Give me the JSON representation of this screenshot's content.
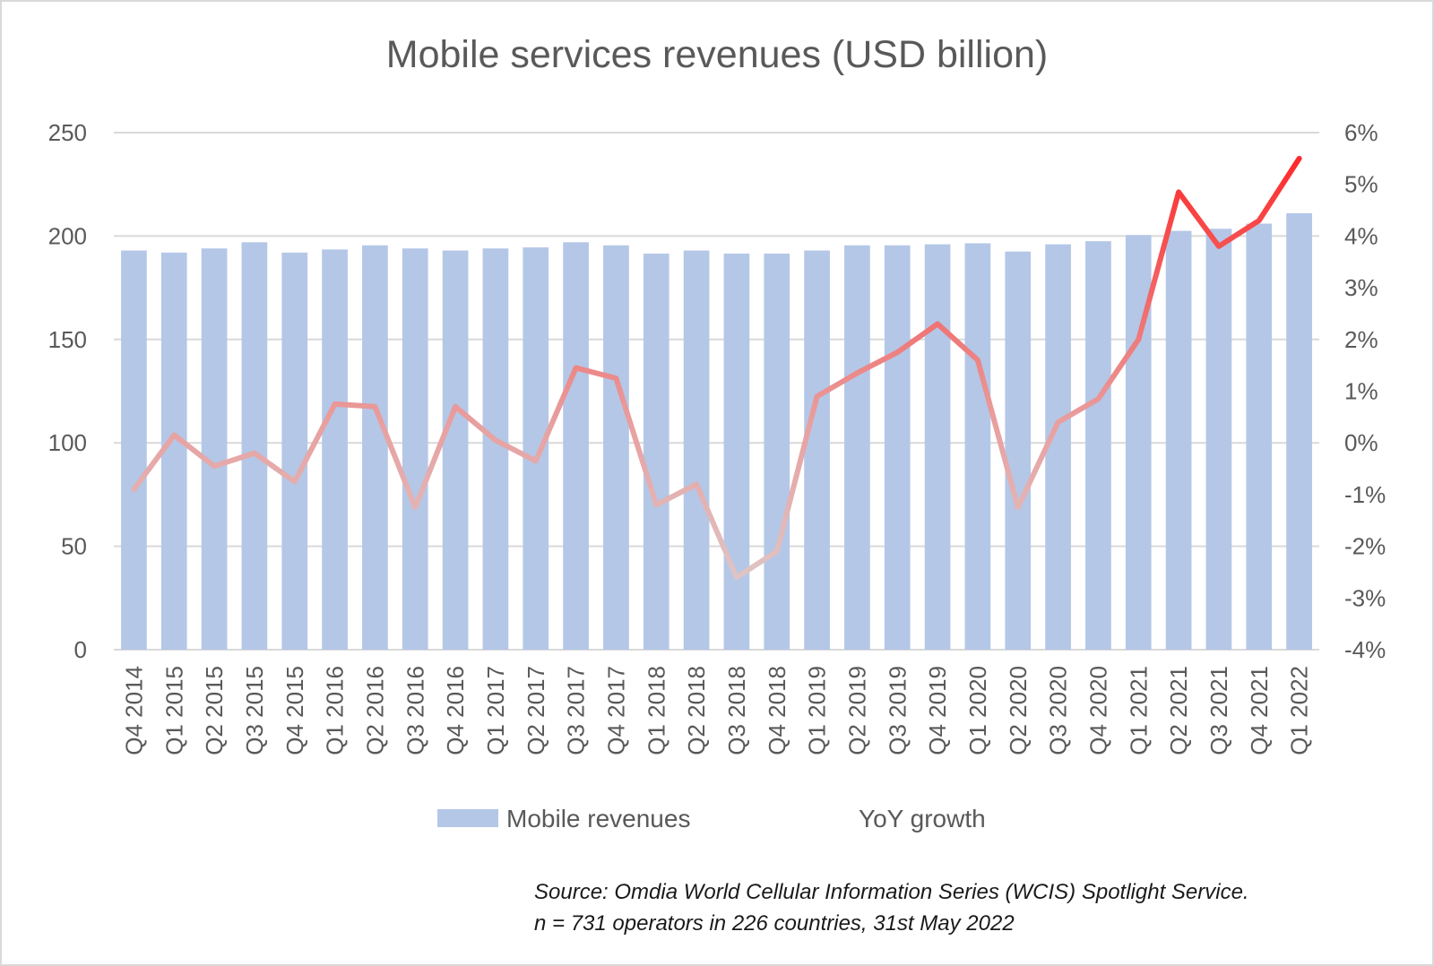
{
  "colors": {
    "bar": "#b4c7e7",
    "grid": "#d9d9d9",
    "axis_text": "#595959",
    "line_start": "#d9d9d9",
    "line_end": "#ff2020"
  },
  "chart_data": {
    "type": "bar",
    "title": "Mobile services revenues (USD billion)",
    "categories": [
      "Q4 2014",
      "Q1 2015",
      "Q2 2015",
      "Q3 2015",
      "Q4 2015",
      "Q1 2016",
      "Q2 2016",
      "Q3 2016",
      "Q4 2016",
      "Q1 2017",
      "Q2 2017",
      "Q3 2017",
      "Q4 2017",
      "Q1 2018",
      "Q2 2018",
      "Q3 2018",
      "Q4 2018",
      "Q1 2019",
      "Q2 2019",
      "Q3 2019",
      "Q4 2019",
      "Q1 2020",
      "Q2 2020",
      "Q3 2020",
      "Q4 2020",
      "Q1 2021",
      "Q2 2021",
      "Q3 2021",
      "Q4 2021",
      "Q1 2022"
    ],
    "series": [
      {
        "name": "Mobile revenues",
        "type": "bar",
        "axis": "left",
        "values": [
          193,
          192,
          194,
          197,
          192,
          193.5,
          195.5,
          194,
          193,
          194,
          194.5,
          197,
          195.5,
          191.5,
          193,
          191.5,
          191.5,
          193,
          195.5,
          195.5,
          196,
          196.5,
          192.5,
          196,
          197.5,
          200.5,
          202.5,
          203.5,
          206,
          211
        ]
      },
      {
        "name": "YoY growth",
        "type": "line",
        "axis": "right",
        "unit": "%",
        "values": [
          -0.9,
          0.15,
          -0.45,
          -0.2,
          -0.75,
          0.75,
          0.7,
          -1.25,
          0.7,
          0.05,
          -0.35,
          1.45,
          1.25,
          -1.2,
          -0.8,
          -2.6,
          -2.1,
          0.9,
          1.35,
          1.75,
          2.3,
          1.6,
          -1.25,
          0.4,
          0.85,
          2.0,
          4.85,
          3.8,
          4.3,
          5.5
        ]
      }
    ],
    "ylim": [
      0,
      250
    ],
    "yticks": [
      "0",
      "50",
      "100",
      "150",
      "200",
      "250"
    ],
    "y2lim": [
      -4,
      6
    ],
    "y2ticks": [
      "-4%",
      "-3%",
      "-2%",
      "-1%",
      "0%",
      "1%",
      "2%",
      "3%",
      "4%",
      "5%",
      "6%"
    ],
    "grid": true,
    "legend_position": "bottom",
    "legend": [
      "Mobile revenues",
      "YoY growth"
    ]
  },
  "source": {
    "line1": "Source: Omdia World Cellular Information Series (WCIS) Spotlight Service.",
    "line2": "n = 731 operators in 226 countries, 31st May 2022"
  }
}
